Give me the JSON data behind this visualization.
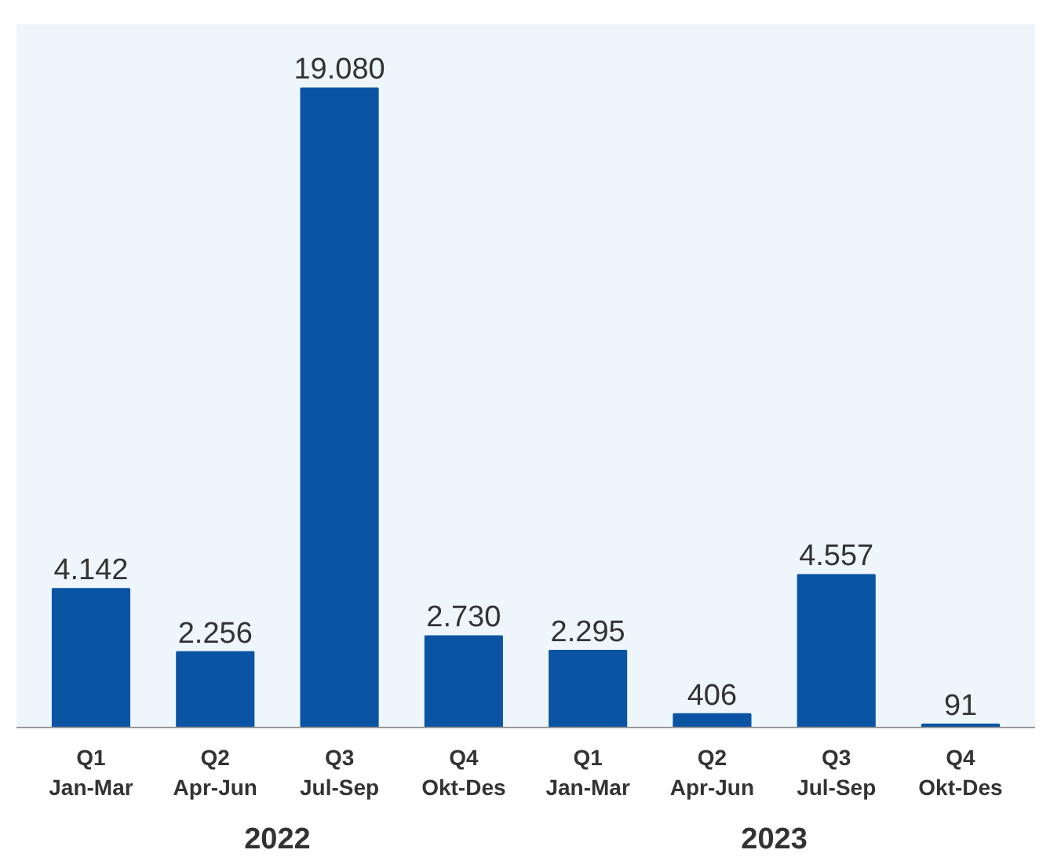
{
  "chart_data": {
    "type": "bar",
    "categories": [
      "Q1\nJan-Mar",
      "Q2\nApr-Jun",
      "Q3\nJul-Sep",
      "Q4\nOkt-Des",
      "Q1\nJan-Mar",
      "Q2\nApr-Jun",
      "Q3\nJul-Sep",
      "Q4\nOkt-Des"
    ],
    "values": [
      4142,
      2256,
      19080,
      2730,
      2295,
      406,
      4557,
      91
    ],
    "value_labels": [
      "4.142",
      "2.256",
      "19.080",
      "2.730",
      "2.295",
      "406",
      "4.557",
      "91"
    ],
    "color": "#0a54a3",
    "annotations": [
      "2022",
      "2023"
    ],
    "grid": false
  }
}
